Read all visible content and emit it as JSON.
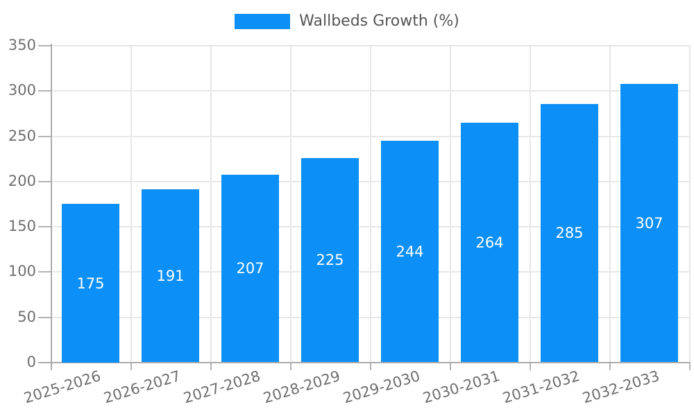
{
  "chart_data": {
    "type": "bar",
    "title": "",
    "legend": [
      "Wallbeds Growth (%)"
    ],
    "legend_position": "top-center",
    "categories": [
      "2025-2026",
      "2026-2027",
      "2027-2028",
      "2028-2029",
      "2029-2030",
      "2030-2031",
      "2031-2032",
      "2032-2033"
    ],
    "series": [
      {
        "name": "Wallbeds Growth (%)",
        "values": [
          175,
          191,
          207,
          225,
          244,
          264,
          285,
          307
        ]
      }
    ],
    "value_labels": "inside-center",
    "xlabel": "",
    "ylabel": "",
    "ylim": [
      0,
      350
    ],
    "yticks": [
      0,
      50,
      100,
      150,
      200,
      250,
      300,
      350
    ],
    "grid": true,
    "x_tick_rotation_deg": -17,
    "colors": {
      "bar": "#0c8ff7",
      "gridline": "#e7e7e7",
      "axis": "#ababab",
      "tick_mark": "#b3b3b3",
      "tick_label": "#6e6e6e",
      "value_label": "#ffffff",
      "legend_text": "#555557",
      "background": "#ffffff"
    }
  }
}
